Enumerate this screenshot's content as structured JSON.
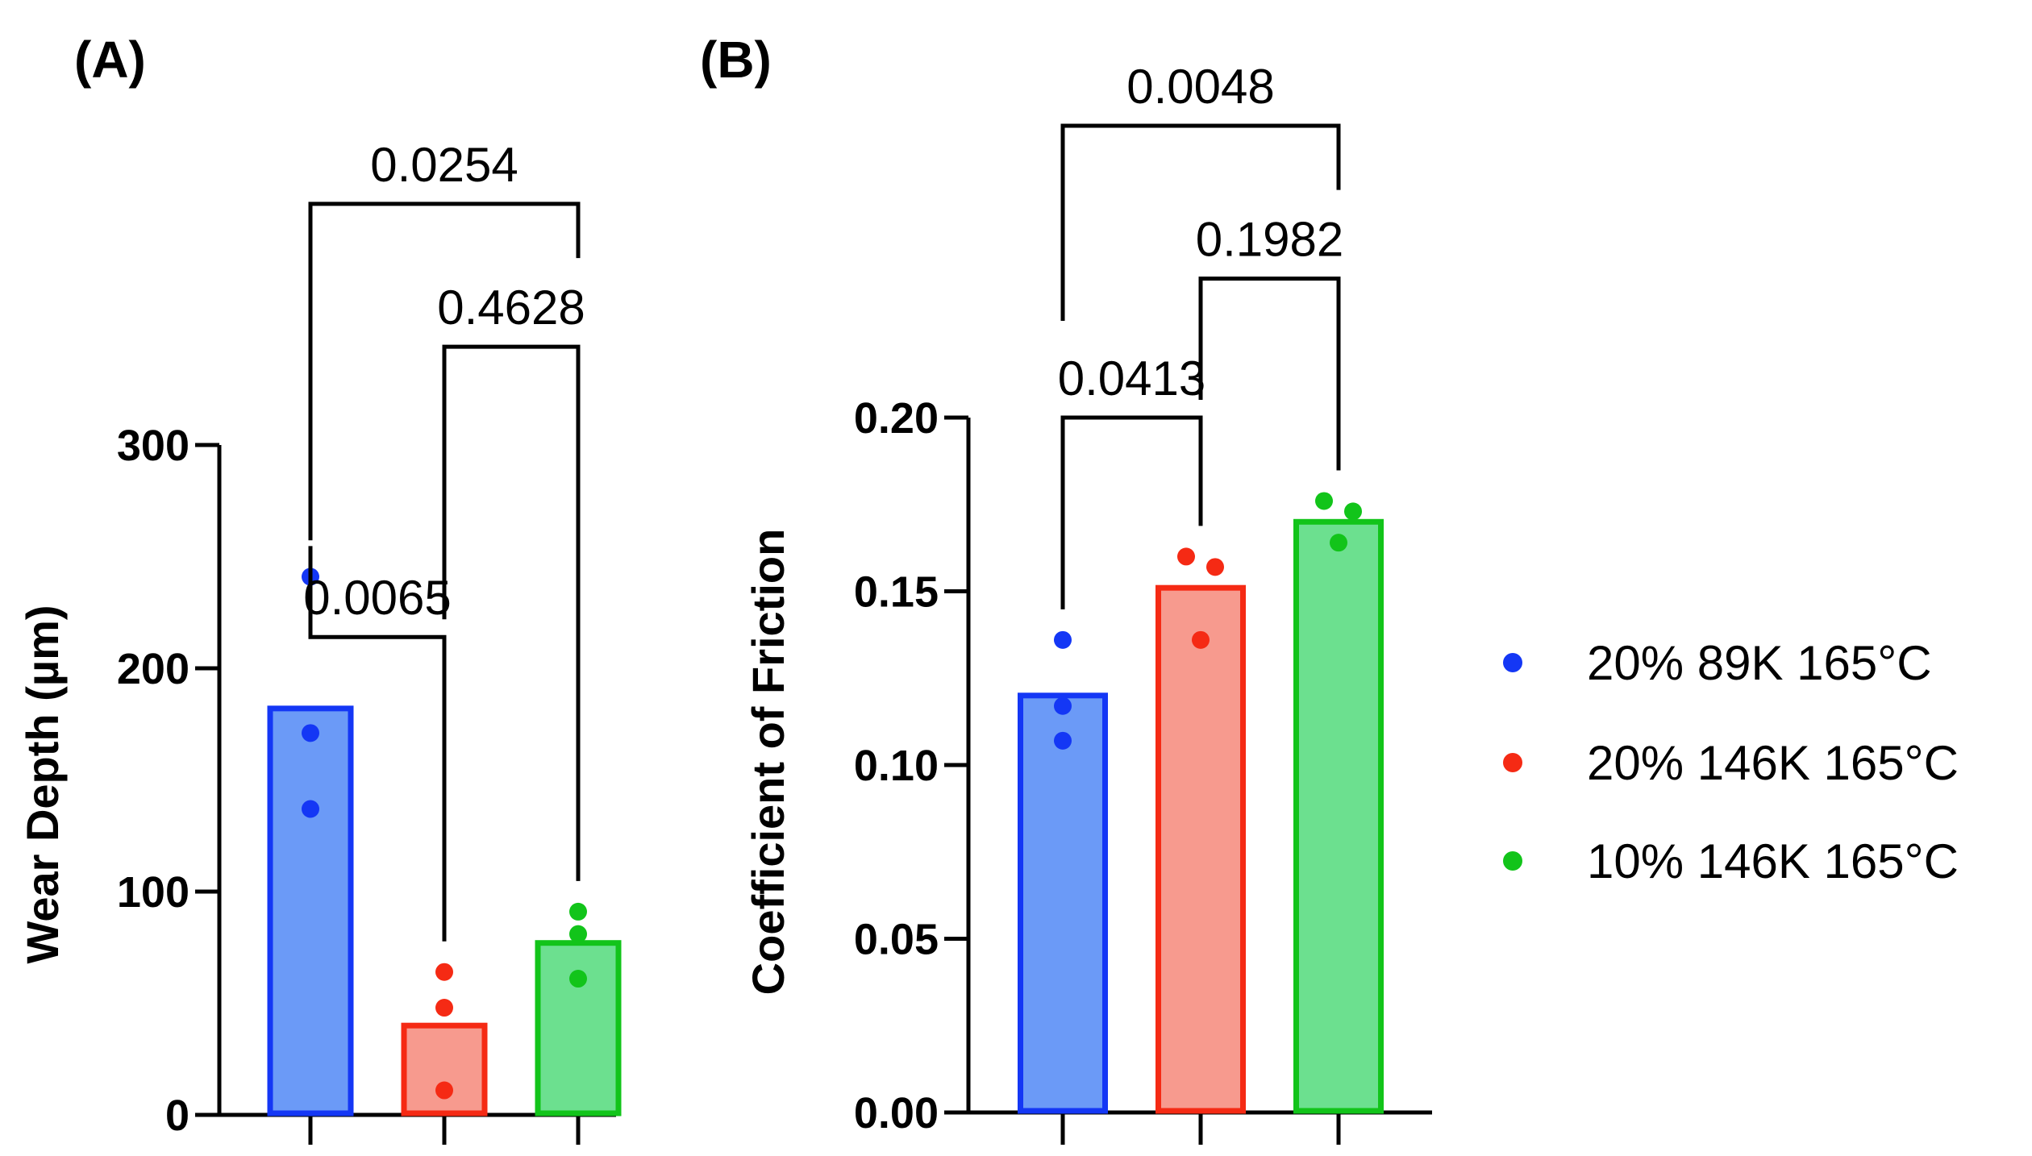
{
  "chart_data": [
    {
      "panel": "(A)",
      "type": "bar",
      "ylabel": "Wear Depth (µm)",
      "ylim": [
        0,
        300
      ],
      "yticks": [
        0,
        100,
        200,
        300
      ],
      "ytick_labels": [
        "0",
        "100",
        "200",
        "300"
      ],
      "categories": [
        "20% 89K 165°C",
        "20% 146K 165°C",
        "10% 146K 165°C"
      ],
      "bar_values": [
        182,
        40,
        77
      ],
      "points": [
        [
          241,
          171,
          137
        ],
        [
          64,
          48,
          11
        ],
        [
          91,
          81,
          61
        ]
      ],
      "comparisons": [
        {
          "from": 0,
          "to": 1,
          "p": "0.0065",
          "level": 214
        },
        {
          "from": 1,
          "to": 2,
          "p": "0.4628",
          "level": 344
        },
        {
          "from": 0,
          "to": 2,
          "p": "0.0254",
          "level": 408
        }
      ]
    },
    {
      "panel": "(B)",
      "type": "bar",
      "ylabel": "Coefficient of Friction",
      "ylim": [
        0,
        0.2
      ],
      "yticks": [
        0,
        0.05,
        0.1,
        0.15,
        0.2
      ],
      "ytick_labels": [
        "0.00",
        "0.05",
        "0.10",
        "0.15",
        "0.20"
      ],
      "categories": [
        "20% 89K 165°C",
        "20% 146K 165°C",
        "10% 146K 165°C"
      ],
      "bar_values": [
        0.12,
        0.151,
        0.17
      ],
      "points": [
        [
          0.136,
          0.117,
          0.107
        ],
        [
          0.16,
          0.157,
          0.136
        ],
        [
          0.176,
          0.173,
          0.164
        ]
      ],
      "comparisons": [
        {
          "from": 0,
          "to": 1,
          "p": "0.0413",
          "level": 0.2
        },
        {
          "from": 1,
          "to": 2,
          "p": "0.1982",
          "level": 0.24
        },
        {
          "from": 0,
          "to": 2,
          "p": "0.0048",
          "level": 0.284
        }
      ]
    }
  ],
  "legend": [
    {
      "label": "20% 89K 165°C",
      "color": "#1437f5"
    },
    {
      "label": "20% 146K 165°C",
      "color": "#f52a14"
    },
    {
      "label": "10% 146K 165°C",
      "color": "#12c41a"
    }
  ],
  "colors": {
    "bar_fills": [
      "#6b9af7",
      "#f79a8e",
      "#6ce08f"
    ],
    "bar_strokes": [
      "#1437f5",
      "#f52a14",
      "#12c41a"
    ],
    "points": [
      "#1437f5",
      "#f52a14",
      "#12c41a"
    ]
  }
}
